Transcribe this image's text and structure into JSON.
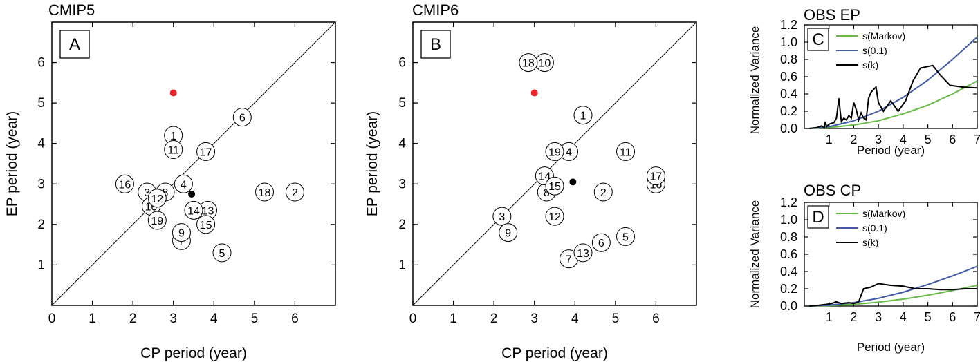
{
  "chart_data": [
    {
      "type": "scatter",
      "title": "CMIP5",
      "panel_label": "A",
      "xlabel": "CP period (year)",
      "ylabel": "EP period (year)",
      "xlim": [
        0,
        7
      ],
      "ylim": [
        0,
        7
      ],
      "xticks": [
        "0",
        "1",
        "2",
        "3",
        "4",
        "5",
        "6"
      ],
      "yticks": [
        "1",
        "2",
        "3",
        "4",
        "5",
        "6"
      ],
      "diagonal": true,
      "points": [
        {
          "label": "1",
          "x": 3.0,
          "y": 4.2
        },
        {
          "label": "2",
          "x": 6.0,
          "y": 2.8
        },
        {
          "label": "3",
          "x": 2.35,
          "y": 2.8
        },
        {
          "label": "4",
          "x": 3.25,
          "y": 3.0
        },
        {
          "label": "5",
          "x": 4.2,
          "y": 1.3
        },
        {
          "label": "6",
          "x": 4.7,
          "y": 4.65
        },
        {
          "label": "7",
          "x": 3.2,
          "y": 1.6
        },
        {
          "label": "8",
          "x": 2.8,
          "y": 2.8
        },
        {
          "label": "9",
          "x": 3.2,
          "y": 1.8
        },
        {
          "label": "10",
          "x": 2.45,
          "y": 2.45
        },
        {
          "label": "11",
          "x": 3.0,
          "y": 3.85
        },
        {
          "label": "12",
          "x": 2.6,
          "y": 2.65
        },
        {
          "label": "13",
          "x": 3.85,
          "y": 2.35
        },
        {
          "label": "14",
          "x": 3.5,
          "y": 2.35
        },
        {
          "label": "15",
          "x": 3.8,
          "y": 2.0
        },
        {
          "label": "16",
          "x": 1.8,
          "y": 3.0
        },
        {
          "label": "17",
          "x": 3.8,
          "y": 3.8
        },
        {
          "label": "18",
          "x": 5.25,
          "y": 2.8
        },
        {
          "label": "19",
          "x": 2.6,
          "y": 2.1
        }
      ],
      "obs_point": {
        "x": 3.0,
        "y": 5.25,
        "color": "#e8262b"
      },
      "mean_point": {
        "x": 3.45,
        "y": 2.75,
        "color": "#000000"
      }
    },
    {
      "type": "scatter",
      "title": "CMIP6",
      "panel_label": "B",
      "xlabel": "CP period (year)",
      "ylabel": "EP period (year)",
      "xlim": [
        0,
        7
      ],
      "ylim": [
        0,
        7
      ],
      "xticks": [
        "0",
        "1",
        "2",
        "3",
        "4",
        "5",
        "6"
      ],
      "yticks": [
        "1",
        "2",
        "3",
        "4",
        "5",
        "6"
      ],
      "diagonal": true,
      "points": [
        {
          "label": "1",
          "x": 4.2,
          "y": 4.7
        },
        {
          "label": "2",
          "x": 4.7,
          "y": 2.8
        },
        {
          "label": "3",
          "x": 2.2,
          "y": 2.2
        },
        {
          "label": "4",
          "x": 3.85,
          "y": 3.8
        },
        {
          "label": "5",
          "x": 5.25,
          "y": 1.7
        },
        {
          "label": "6",
          "x": 4.65,
          "y": 1.55
        },
        {
          "label": "7",
          "x": 3.85,
          "y": 1.15
        },
        {
          "label": "8",
          "x": 3.3,
          "y": 2.8
        },
        {
          "label": "9",
          "x": 2.35,
          "y": 1.8
        },
        {
          "label": "10",
          "x": 3.25,
          "y": 6.0
        },
        {
          "label": "11",
          "x": 5.25,
          "y": 3.8
        },
        {
          "label": "12",
          "x": 3.5,
          "y": 2.2
        },
        {
          "label": "13",
          "x": 4.2,
          "y": 1.3
        },
        {
          "label": "14",
          "x": 3.25,
          "y": 3.2
        },
        {
          "label": "15",
          "x": 3.5,
          "y": 2.95
        },
        {
          "label": "16",
          "x": 6.0,
          "y": 3.0
        },
        {
          "label": "17",
          "x": 6.0,
          "y": 3.2
        },
        {
          "label": "18",
          "x": 2.85,
          "y": 6.0
        },
        {
          "label": "19",
          "x": 3.5,
          "y": 3.8
        }
      ],
      "obs_point": {
        "x": 3.0,
        "y": 5.25,
        "color": "#e8262b"
      },
      "mean_point": {
        "x": 3.95,
        "y": 3.05,
        "color": "#000000"
      }
    },
    {
      "type": "line",
      "title": "OBS EP",
      "panel_label": "C",
      "xlabel": "Period (year)",
      "ylabel": "Normalized Variance",
      "xlim": [
        0,
        7
      ],
      "ylim": [
        0,
        1.2
      ],
      "xticks": [
        "1",
        "2",
        "3",
        "4",
        "5",
        "6",
        "7"
      ],
      "yticks": [
        "0.0",
        "0.2",
        "0.4",
        "0.6",
        "0.8",
        "1.0",
        "1.2"
      ],
      "series": [
        {
          "name": "s(Markov)",
          "color": "#66bb44",
          "x": [
            0.2,
            1,
            2,
            3,
            4,
            5,
            6,
            7
          ],
          "y": [
            0,
            0.01,
            0.04,
            0.09,
            0.17,
            0.27,
            0.4,
            0.55
          ]
        },
        {
          "name": "s(0.1)",
          "color": "#3f5aa8",
          "x": [
            0.2,
            1,
            2,
            3,
            4,
            5,
            6,
            7
          ],
          "y": [
            0,
            0.02,
            0.09,
            0.2,
            0.36,
            0.56,
            0.8,
            1.06
          ]
        },
        {
          "name": "s(k)",
          "color": "#000000",
          "x": [
            0.2,
            0.5,
            0.7,
            0.8,
            0.85,
            0.9,
            1.0,
            1.2,
            1.3,
            1.4,
            1.45,
            1.5,
            1.6,
            1.7,
            1.8,
            1.9,
            2.0,
            2.1,
            2.2,
            2.3,
            2.4,
            2.5,
            2.6,
            2.7,
            2.9,
            3.0,
            3.2,
            3.5,
            3.8,
            4.1,
            4.4,
            4.7,
            5.2,
            5.5,
            5.9,
            6.4,
            7.0
          ],
          "y": [
            0,
            0.01,
            0.03,
            0.01,
            0.08,
            0.02,
            0.05,
            0.07,
            0.12,
            0.35,
            0.2,
            0.08,
            0.12,
            0.1,
            0.15,
            0.12,
            0.3,
            0.22,
            0.1,
            0.18,
            0.12,
            0.1,
            0.35,
            0.42,
            0.48,
            0.3,
            0.2,
            0.32,
            0.2,
            0.32,
            0.55,
            0.7,
            0.73,
            0.62,
            0.5,
            0.48,
            0.47
          ]
        }
      ]
    },
    {
      "type": "line",
      "title": "OBS CP",
      "panel_label": "D",
      "xlabel": "Period (year)",
      "ylabel": "Normalized Variance",
      "xlim": [
        0,
        7
      ],
      "ylim": [
        0,
        1.2
      ],
      "xticks": [
        "1",
        "2",
        "3",
        "4",
        "5",
        "6",
        "7"
      ],
      "yticks": [
        "0.0",
        "0.2",
        "0.4",
        "0.6",
        "0.8",
        "1.0",
        "1.2"
      ],
      "series": [
        {
          "name": "s(Markov)",
          "color": "#66bb44",
          "x": [
            0.2,
            1,
            2,
            3,
            4,
            5,
            6,
            7
          ],
          "y": [
            0,
            0.005,
            0.02,
            0.045,
            0.08,
            0.125,
            0.18,
            0.24
          ]
        },
        {
          "name": "s(0.1)",
          "color": "#3f5aa8",
          "x": [
            0.2,
            1,
            2,
            3,
            4,
            5,
            6,
            7
          ],
          "y": [
            0,
            0.01,
            0.04,
            0.09,
            0.16,
            0.25,
            0.35,
            0.46
          ]
        },
        {
          "name": "s(k)",
          "color": "#000000",
          "x": [
            0.2,
            0.6,
            0.9,
            1.1,
            1.3,
            1.5,
            1.8,
            2.0,
            2.2,
            2.4,
            2.7,
            3.0,
            3.5,
            4.0,
            4.5,
            5.0,
            5.5,
            6.0,
            6.5,
            7.0
          ],
          "y": [
            0,
            0.01,
            0.02,
            0.03,
            0.05,
            0.03,
            0.04,
            0.03,
            0.05,
            0.2,
            0.22,
            0.26,
            0.24,
            0.23,
            0.2,
            0.2,
            0.19,
            0.19,
            0.2,
            0.2
          ]
        }
      ]
    }
  ]
}
